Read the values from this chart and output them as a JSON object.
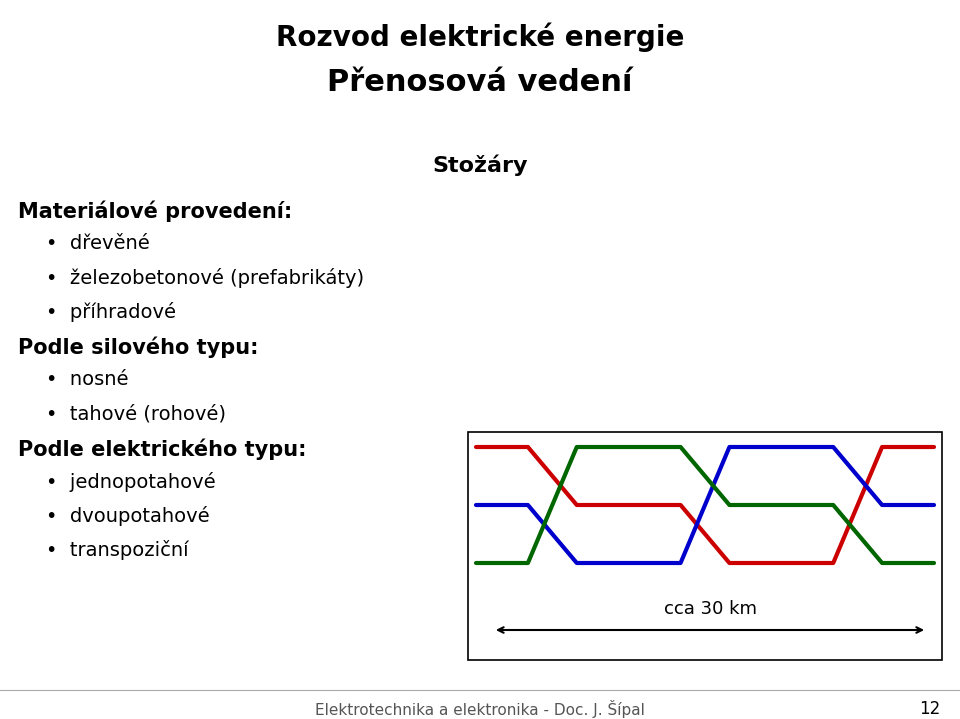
{
  "title1": "Rozvod elektrické energie",
  "title2": "Přenosová vedení",
  "subtitle": "Stožáry",
  "heading1": "Materiálové provedení:",
  "bullets1": [
    "dřevěné",
    "železobetonové (prefabrikáty)",
    "příhradové"
  ],
  "heading2": "Podle silového typu:",
  "bullets2": [
    "nosné",
    "tahové (rohové)"
  ],
  "heading3": "Podle elektrického typu:",
  "bullets3": [
    "jednopotahové",
    "dvoupotahové",
    "transpoziční"
  ],
  "footer": "Elektrotechnika a elektronika - Doc. J. Šípal",
  "page_number": "12",
  "arrow_label": "cca 30 km",
  "line_colors": [
    "#cc0000",
    "#0000cc",
    "#006600"
  ],
  "bg_color": "#ffffff",
  "text_color": "#000000",
  "lw": 2.5,
  "title1_fontsize": 20,
  "title2_fontsize": 22,
  "subtitle_fontsize": 16,
  "heading_fontsize": 15,
  "bullet_fontsize": 14,
  "footer_fontsize": 11
}
